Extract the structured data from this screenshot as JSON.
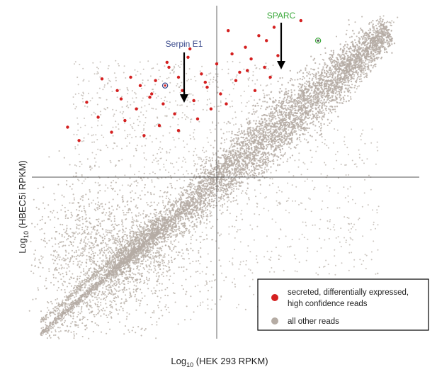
{
  "chart_data": {
    "type": "scatter",
    "title": "",
    "xlabel": {
      "prefix": "Log",
      "sub": "10",
      "rest": " (HEK 293 RPKM)"
    },
    "ylabel": {
      "prefix": "Log",
      "sub": "10",
      "rest": " (HBEC5i RPKM)"
    },
    "xlim": [
      -1,
      1
    ],
    "ylim": [
      -1,
      1
    ],
    "grid": false,
    "axes": "crosshair-at-origin",
    "legend_position": "bottom-right",
    "series": [
      {
        "name": "secreted, differentially expressed, high confidence reads",
        "legend_lines": [
          "secreted, differentially expressed,",
          "high confidence reads"
        ],
        "color": "#d42020",
        "x": [
          -0.78,
          -0.72,
          -0.68,
          -0.62,
          -0.55,
          -0.52,
          -0.48,
          -0.45,
          -0.42,
          -0.38,
          -0.35,
          -0.32,
          -0.3,
          -0.28,
          -0.25,
          -0.22,
          -0.2,
          -0.18,
          -0.15,
          -0.12,
          -0.1,
          -0.08,
          -0.05,
          -0.03,
          0.0,
          0.02,
          0.05,
          0.08,
          0.1,
          0.12,
          0.15,
          0.18,
          0.2,
          0.22,
          0.25,
          0.28,
          0.3,
          0.32,
          -0.6,
          -0.4,
          -0.26,
          -0.14,
          0.06,
          0.16,
          0.26,
          0.44,
          -0.5,
          -0.34,
          -0.2,
          -0.06
        ],
        "y": [
          0.3,
          0.22,
          0.45,
          0.36,
          0.27,
          0.52,
          0.34,
          0.6,
          0.41,
          0.25,
          0.48,
          0.58,
          0.31,
          0.44,
          0.66,
          0.38,
          0.28,
          0.52,
          0.72,
          0.46,
          0.35,
          0.62,
          0.54,
          0.41,
          0.68,
          0.5,
          0.44,
          0.74,
          0.58,
          0.63,
          0.78,
          0.71,
          0.52,
          0.85,
          0.66,
          0.6,
          0.9,
          0.73,
          0.59,
          0.55,
          0.69,
          0.77,
          0.88,
          0.64,
          0.82,
          0.94,
          0.47,
          0.5,
          0.6,
          0.57
        ]
      },
      {
        "name": "all other reads",
        "color": "#b5aca4"
      }
    ],
    "annotations": [
      {
        "label": "Serpin E1",
        "color": "#3a4a8c",
        "x": -0.27,
        "y": 0.55
      },
      {
        "label": "SPARC",
        "color": "#3aa83a",
        "x": 0.53,
        "y": 0.82
      }
    ]
  }
}
